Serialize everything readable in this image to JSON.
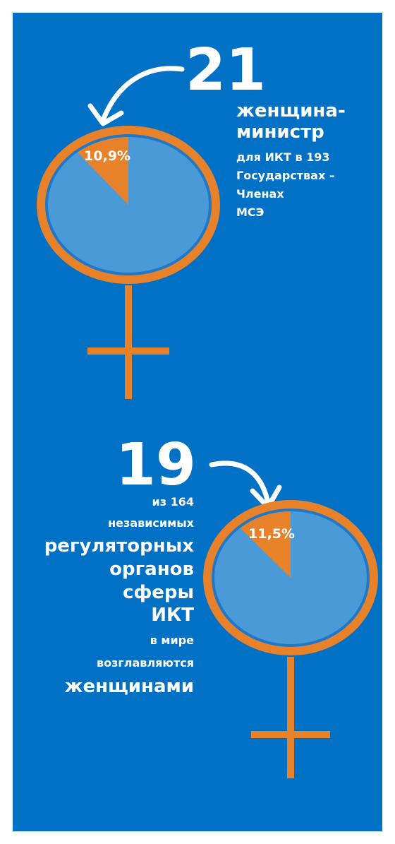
{
  "chart_data": [
    {
      "type": "pie",
      "values": [
        10.9
      ],
      "value_labels": [
        "10,9%"
      ],
      "color": "#e8822a",
      "rest_color": "#4a9ad8",
      "headline": "21",
      "title_lines": [
        "женщина-",
        "министр"
      ],
      "text_lines": [
        "для ИКТ в 193",
        "Государствах –",
        "Членах",
        "МСЭ"
      ]
    },
    {
      "type": "pie",
      "values": [
        11.5
      ],
      "value_labels": [
        "11,5%"
      ],
      "color": "#e8822a",
      "rest_color": "#4a9ad8",
      "headline": "19",
      "text_lines": [
        "из 164",
        "независимых"
      ],
      "title_lines": [
        "регуляторных",
        "органов",
        "сферы",
        "ИКТ"
      ],
      "footer_lines": [
        "в мире",
        "возглавляются"
      ],
      "closing": "женщинами"
    }
  ]
}
